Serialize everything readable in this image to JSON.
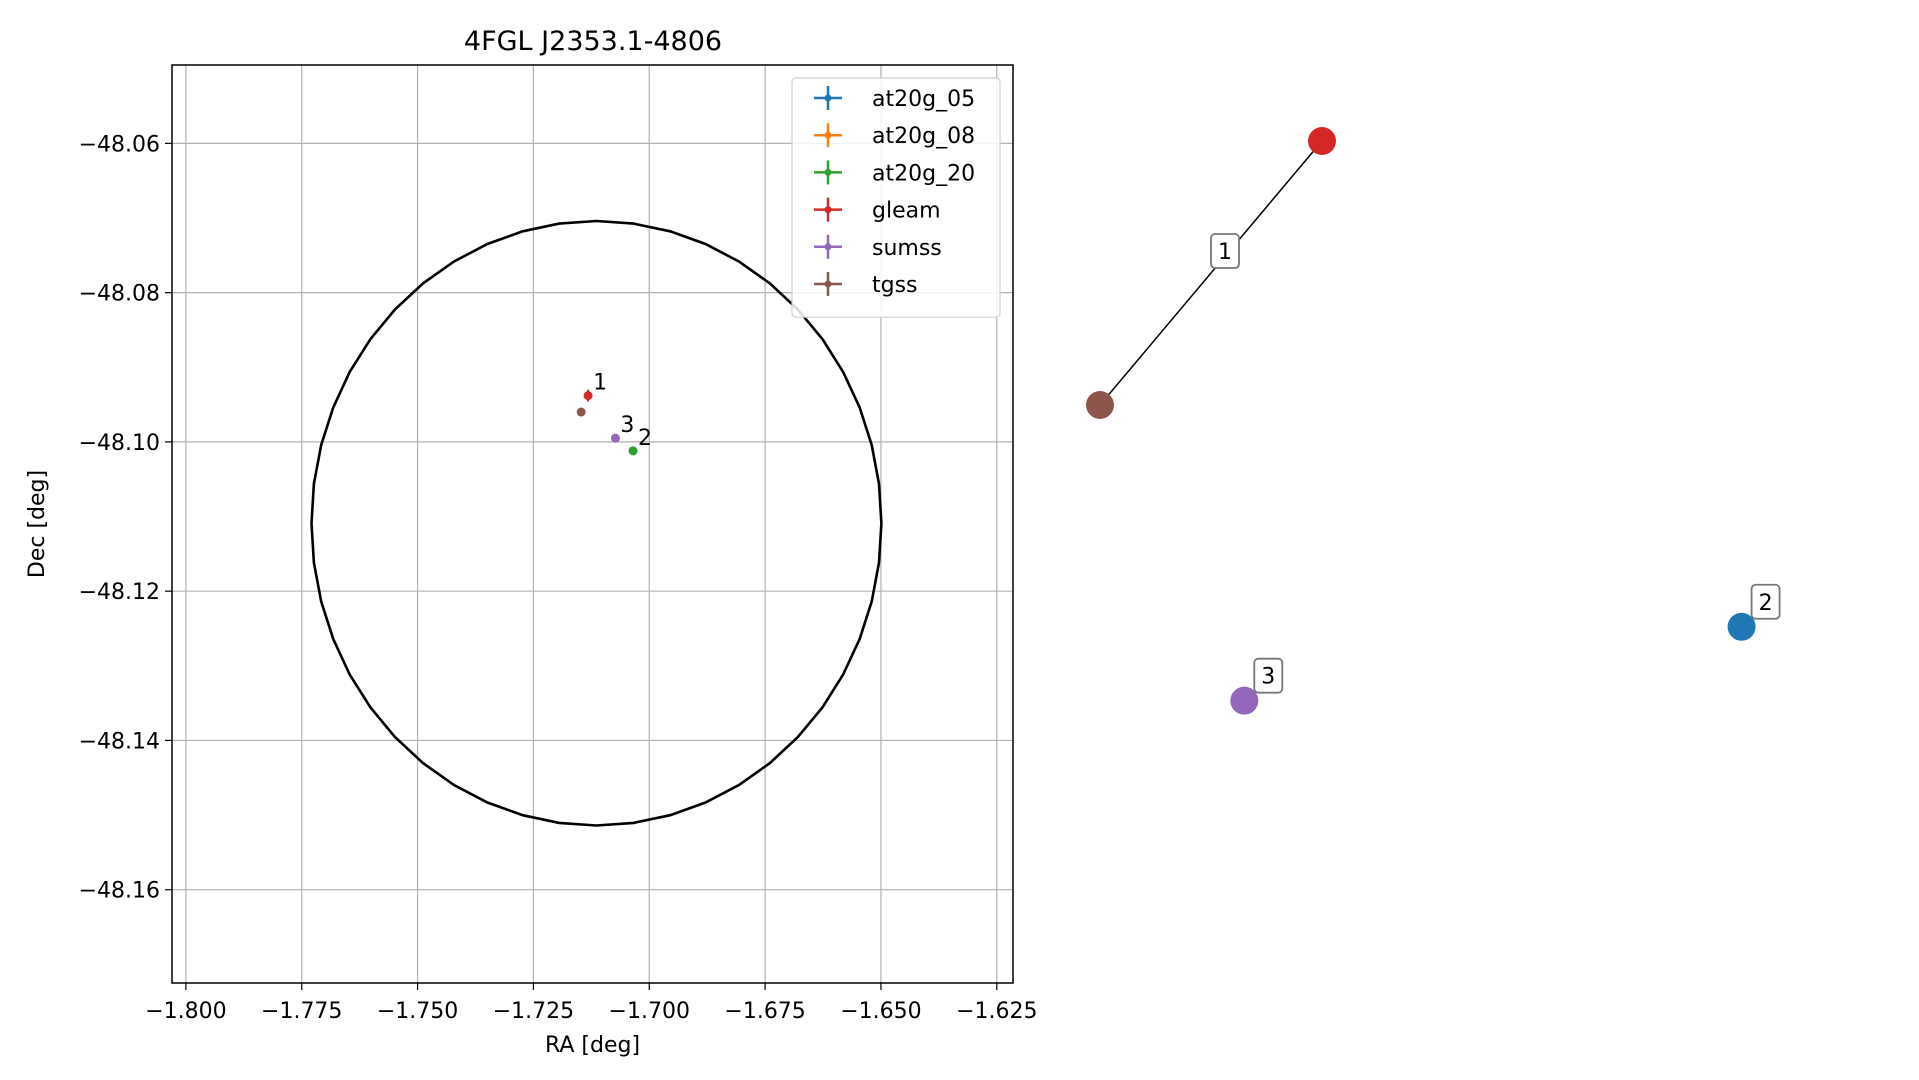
{
  "chart_data": [
    {
      "type": "scatter",
      "title": "4FGL J2353.1-4806",
      "xlabel": "RA [deg]",
      "ylabel": "Dec [deg]",
      "xlim": [
        -1.803,
        -1.6215
      ],
      "ylim": [
        -48.1725,
        -48.0495
      ],
      "xticks": [
        -1.8,
        -1.775,
        -1.75,
        -1.725,
        -1.7,
        -1.675,
        -1.65,
        -1.625
      ],
      "yticks": [
        -48.06,
        -48.08,
        -48.1,
        -48.12,
        -48.14,
        -48.16
      ],
      "xtick_labels": [
        "−1.800",
        "−1.775",
        "−1.750",
        "−1.725",
        "−1.700",
        "−1.675",
        "−1.650",
        "−1.625"
      ],
      "ytick_labels": [
        "−48.06",
        "−48.08",
        "−48.10",
        "−48.12",
        "−48.14",
        "−48.16"
      ],
      "grid": true,
      "legend_position": "top-right",
      "series": [
        {
          "name": "at20g_05",
          "color": "#1f77b4",
          "points": []
        },
        {
          "name": "at20g_08",
          "color": "#ff7f0e",
          "points": []
        },
        {
          "name": "at20g_20",
          "color": "#2ca02c",
          "points": [
            {
              "x": -1.7035,
              "y": -48.1012
            }
          ]
        },
        {
          "name": "gleam",
          "color": "#d62728",
          "points": [
            {
              "x": -1.7132,
              "y": -48.0938,
              "xerr": 0.0007,
              "yerr": 0.0008
            }
          ]
        },
        {
          "name": "sumss",
          "color": "#9467bd",
          "points": [
            {
              "x": -1.7073,
              "y": -48.0995
            }
          ]
        },
        {
          "name": "tgss",
          "color": "#8c564b",
          "points": [
            {
              "x": -1.7147,
              "y": -48.096
            }
          ]
        }
      ],
      "annotations": [
        {
          "text": "1",
          "x": -1.7132,
          "y": -48.0938
        },
        {
          "text": "2",
          "x": -1.7035,
          "y": -48.1012
        },
        {
          "text": "3",
          "x": -1.7073,
          "y": -48.0995
        }
      ],
      "ellipse": {
        "center_x": -1.7114,
        "center_y": -48.1109,
        "ra_radius": 0.0615,
        "dec_radius": 0.0405,
        "color": "#000000"
      }
    },
    {
      "type": "network",
      "nodes": [
        {
          "id": "tgss",
          "x": 0.0,
          "y": 0.0,
          "color": "#8c564b"
        },
        {
          "id": "gleam",
          "x": 1.0,
          "y": 1.0,
          "color": "#d62728"
        },
        {
          "id": "at20g_05",
          "x": 2.89,
          "y": -0.84,
          "color": "#1f77b4"
        },
        {
          "id": "sumss",
          "x": 0.65,
          "y": -1.12,
          "color": "#9467bd"
        }
      ],
      "edges": [
        {
          "source": "tgss",
          "target": "gleam",
          "label": "1"
        }
      ],
      "node_labels": [
        {
          "node": "at20g_05",
          "text": "2"
        },
        {
          "node": "sumss",
          "text": "3"
        }
      ]
    }
  ]
}
